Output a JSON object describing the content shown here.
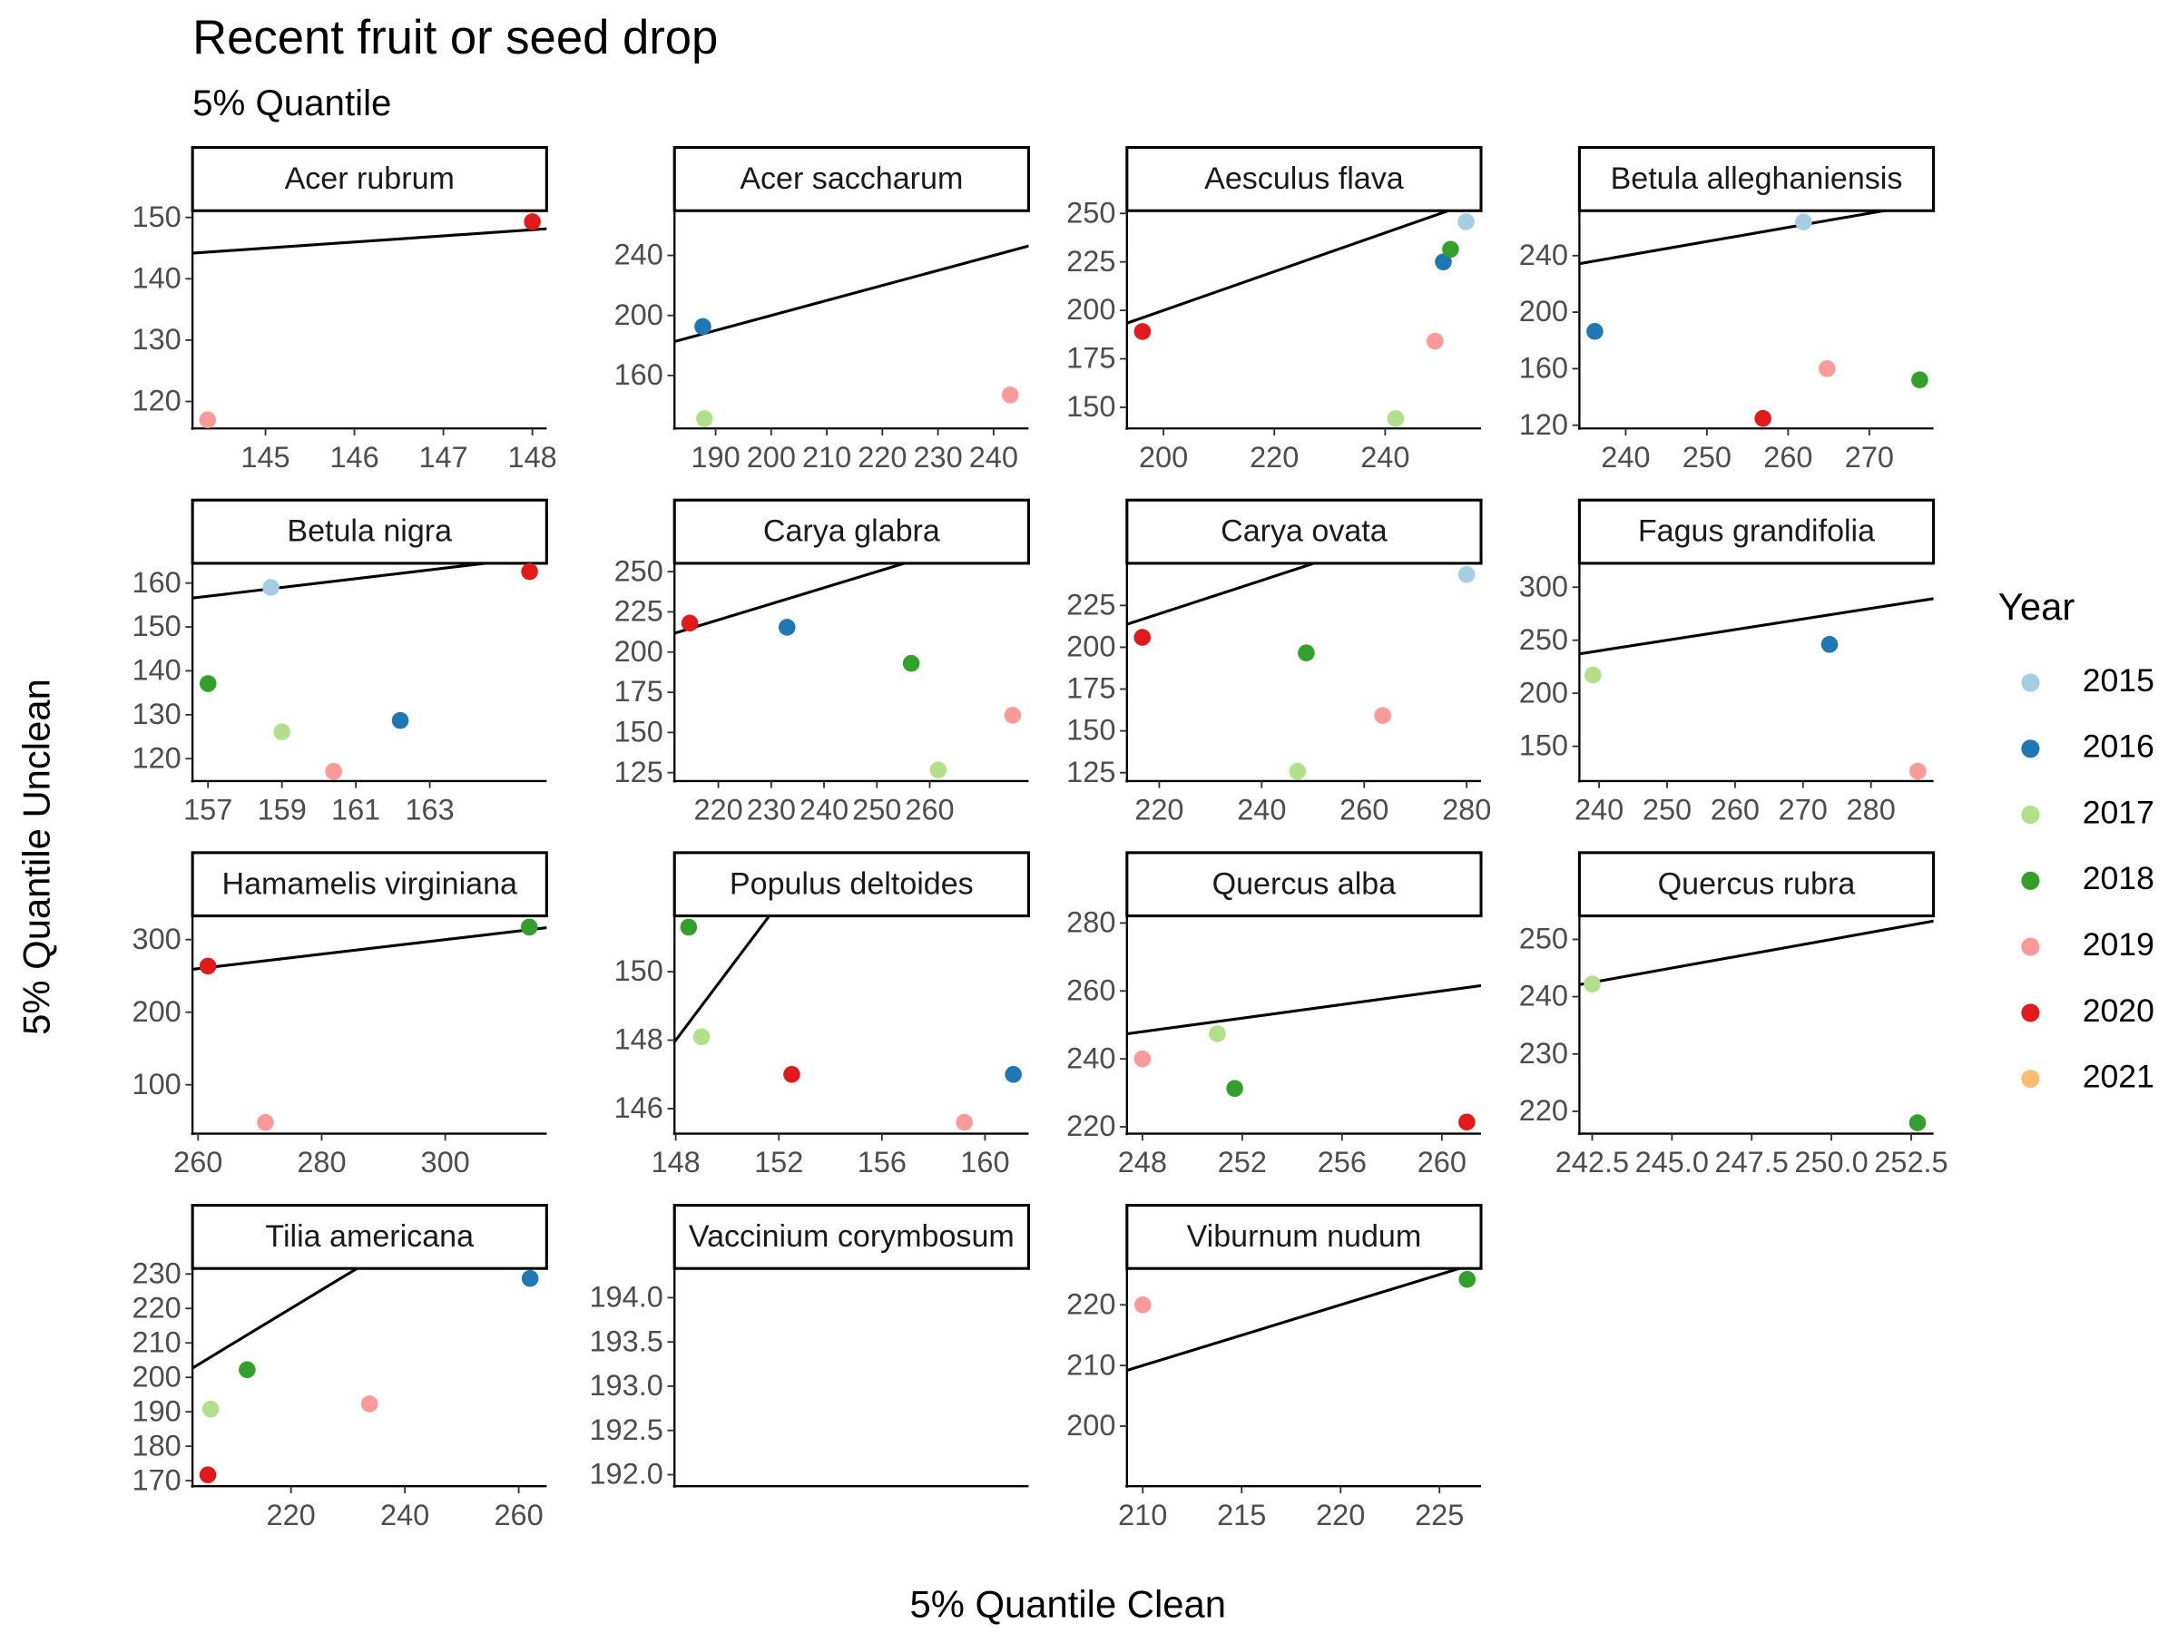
{
  "chart_data": {
    "type": "scatter",
    "title": "Recent fruit or seed drop",
    "subtitle": "5% Quantile",
    "x_label": "5% Quantile Clean",
    "y_label": "5% Quantile Unclean",
    "legend_title": "Year",
    "identity_line": true,
    "series": [
      {
        "name": "2015",
        "color": "#a6cee3"
      },
      {
        "name": "2016",
        "color": "#1f78b4"
      },
      {
        "name": "2017",
        "color": "#b2df8a"
      },
      {
        "name": "2018",
        "color": "#33a02c"
      },
      {
        "name": "2019",
        "color": "#fb9a99"
      },
      {
        "name": "2020",
        "color": "#e31a1c"
      },
      {
        "name": "2021",
        "color": "#fdbf6f"
      }
    ],
    "facets": [
      {
        "title": "Acer rubrum",
        "xlim": [
          144.18,
          148.16
        ],
        "ylim": [
          115.6,
          151.1
        ],
        "xticks": [
          145,
          146,
          147,
          148
        ],
        "yticks": [
          120,
          130,
          140,
          150
        ],
        "x": [
          144.35,
          148.0
        ],
        "y": [
          117.0,
          149.3
        ],
        "year": [
          "2019",
          "2020"
        ]
      },
      {
        "title": "Acer saccharum",
        "xlim": [
          182.6,
          246.3
        ],
        "ylim": [
          124.7,
          269.8
        ],
        "xticks": [
          190,
          200,
          210,
          220,
          230,
          240
        ],
        "yticks": [
          160,
          200,
          240
        ],
        "x": [
          187.7,
          188.0,
          243.0
        ],
        "y": [
          192.6,
          131.2,
          147.0
        ],
        "year": [
          "2016",
          "2017",
          "2019"
        ]
      },
      {
        "title": "Aesculus flava",
        "xlim": [
          193.4,
          257.3
        ],
        "ylim": [
          139.1,
          251.4
        ],
        "xticks": [
          200,
          220,
          240
        ],
        "yticks": [
          150,
          175,
          200,
          225,
          250
        ],
        "x": [
          196.2,
          241.9,
          249.0,
          250.5,
          251.8,
          254.6
        ],
        "y": [
          189.1,
          144.2,
          184.1,
          225.0,
          231.5,
          245.7
        ],
        "year": [
          "2020",
          "2017",
          "2019",
          "2016",
          "2018",
          "2015"
        ]
      },
      {
        "title": "Betula alleghaniensis",
        "xlim": [
          234.3,
          277.9
        ],
        "ylim": [
          117.7,
          271.8
        ],
        "xticks": [
          240,
          250,
          260,
          270
        ],
        "yticks": [
          120,
          160,
          200,
          240
        ],
        "x": [
          236.2,
          261.9,
          256.9,
          264.8,
          276.2
        ],
        "y": [
          186.4,
          263.8,
          124.8,
          160.0,
          152.1
        ],
        "year": [
          "2016",
          "2015",
          "2020",
          "2019",
          "2018"
        ]
      },
      {
        "title": "Betula nigra",
        "xlim": [
          156.58,
          166.16
        ],
        "ylim": [
          114.9,
          164.5
        ],
        "xticks": [
          157,
          159,
          161,
          163
        ],
        "yticks": [
          120,
          130,
          140,
          150,
          160
        ],
        "x": [
          157.0,
          158.7,
          159.0,
          160.4,
          162.2,
          165.7
        ],
        "y": [
          137.1,
          159.0,
          126.1,
          117.1,
          128.7,
          162.6
        ],
        "year": [
          "2018",
          "2015",
          "2017",
          "2019",
          "2016",
          "2020"
        ]
      },
      {
        "title": "Carya glabra",
        "xlim": [
          211.7,
          278.7
        ],
        "ylim": [
          119.8,
          255.2
        ],
        "xticks": [
          220,
          230,
          240,
          250,
          260
        ],
        "yticks": [
          125,
          150,
          175,
          200,
          225,
          250
        ],
        "x": [
          214.6,
          233.0,
          256.5,
          261.6,
          275.7
        ],
        "y": [
          218.0,
          215.4,
          193.0,
          126.7,
          160.7
        ],
        "year": [
          "2020",
          "2016",
          "2018",
          "2017",
          "2019"
        ]
      },
      {
        "title": "Carya ovata",
        "xlim": [
          213.7,
          282.8
        ],
        "ylim": [
          120.0,
          250.2
        ],
        "xticks": [
          220,
          240,
          260,
          280
        ],
        "yticks": [
          125,
          150,
          175,
          200,
          225
        ],
        "x": [
          216.7,
          248.7,
          247.0,
          263.6,
          280.0
        ],
        "y": [
          205.9,
          196.6,
          125.8,
          159.2,
          243.5
        ],
        "year": [
          "2020",
          "2018",
          "2017",
          "2019",
          "2015"
        ]
      },
      {
        "title": "Fagus grandifolia",
        "xlim": [
          237.1,
          289.2
        ],
        "ylim": [
          117.2,
          322.5
        ],
        "xticks": [
          240,
          250,
          260,
          270,
          280
        ],
        "yticks": [
          150,
          200,
          250,
          300
        ],
        "x": [
          239.1,
          273.9,
          286.9
        ],
        "y": [
          217.2,
          246.0,
          126.5
        ],
        "year": [
          "2017",
          "2016",
          "2019"
        ]
      },
      {
        "title": "Hamamelis virginiana",
        "xlim": [
          259.1,
          316.4
        ],
        "ylim": [
          32.7,
          332.7
        ],
        "xticks": [
          260,
          280,
          300
        ],
        "yticks": [
          100,
          200,
          300
        ],
        "x": [
          261.6,
          270.9,
          313.6
        ],
        "y": [
          263.5,
          48.0,
          317.3
        ],
        "year": [
          "2020",
          "2019",
          "2018"
        ]
      },
      {
        "title": "Populus deltoides",
        "xlim": [
          147.95,
          161.69
        ],
        "ylim": [
          145.27,
          151.63
        ],
        "xticks": [
          148,
          152,
          156,
          160
        ],
        "yticks": [
          146,
          148,
          150
        ],
        "x": [
          148.5,
          149.0,
          152.5,
          159.2,
          161.1
        ],
        "y": [
          151.3,
          148.1,
          147.0,
          145.6,
          147.0
        ],
        "year": [
          "2018",
          "2017",
          "2020",
          "2019",
          "2016"
        ]
      },
      {
        "title": "Quercus alba",
        "xlim": [
          247.38,
          261.57
        ],
        "ylim": [
          218.0,
          282.1
        ],
        "xticks": [
          248,
          252,
          256,
          260
        ],
        "yticks": [
          220,
          240,
          260,
          280
        ],
        "x": [
          248.0,
          251.0,
          251.7,
          261.0
        ],
        "y": [
          240.0,
          247.4,
          231.3,
          221.4
        ],
        "year": [
          "2019",
          "2017",
          "2018",
          "2020"
        ]
      },
      {
        "title": "Quercus rubra",
        "xlim": [
          242.1,
          253.2
        ],
        "ylim": [
          216.1,
          254.1
        ],
        "xticks": [
          242.5,
          {
            "value": 245,
            "label": "245.0"
          },
          247.5,
          {
            "value": 250,
            "label": "250.0"
          },
          252.5
        ],
        "yticks": [
          220,
          230,
          240,
          250
        ],
        "x": [
          242.5,
          252.7
        ],
        "y": [
          242.2,
          218.0
        ],
        "year": [
          "2017",
          "2018"
        ]
      },
      {
        "title": "Tilia americana",
        "xlim": [
          202.7,
          264.9
        ],
        "ylim": [
          168.4,
          231.6
        ],
        "xticks": [
          220,
          240,
          260
        ],
        "yticks": [
          170,
          180,
          190,
          200,
          210,
          220,
          230
        ],
        "x": [
          205.9,
          205.4,
          212.3,
          233.8,
          262.0
        ],
        "y": [
          190.8,
          171.7,
          202.2,
          192.3,
          228.7
        ],
        "year": [
          "2017",
          "2020",
          "2018",
          "2019",
          "2016"
        ]
      },
      {
        "title": "Vaccinium corymbosum",
        "ylim": [
          191.87,
          194.33
        ],
        "xticks": [],
        "yticks": [
          {
            "value": 192,
            "label": "192.0"
          },
          192.5,
          {
            "value": 193,
            "label": "193.0"
          },
          193.5,
          {
            "value": 194,
            "label": "194.0"
          }
        ],
        "x": [],
        "y": [],
        "year": []
      },
      {
        "title": "Viburnum nudum",
        "xlim": [
          209.2,
          227.1
        ],
        "ylim": [
          190.1,
          226.0
        ],
        "xticks": [
          210,
          215,
          220,
          225
        ],
        "yticks": [
          200,
          210,
          220
        ],
        "x": [
          210.0,
          226.4
        ],
        "y": [
          220.0,
          224.2
        ],
        "year": [
          "2019",
          "2018"
        ]
      }
    ]
  }
}
